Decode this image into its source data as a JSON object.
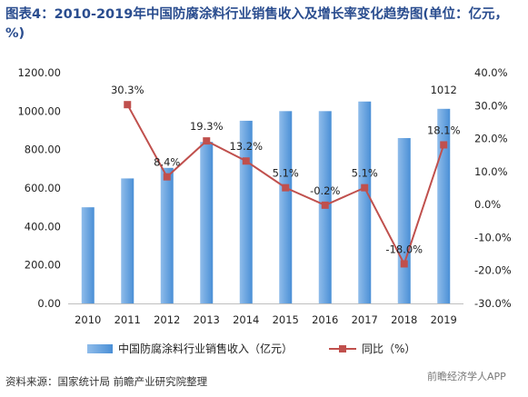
{
  "title": "图表4：2010-2019年中国防腐涂料行业销售收入及增长率变化趋势图(单位：亿元，%)",
  "source": "资料来源：国家统计局 前瞻产业研究院整理",
  "watermark": "前瞻经济学人APP",
  "chart_data": {
    "type": "bar+line",
    "categories": [
      "2010",
      "2011",
      "2012",
      "2013",
      "2014",
      "2015",
      "2016",
      "2017",
      "2018",
      "2019"
    ],
    "series": [
      {
        "name": "中国防腐涂料行业销售收入（亿元）",
        "type": "bar",
        "axis": "left",
        "values": [
          500,
          650,
          705,
          840,
          950,
          1000,
          1000,
          1050,
          860,
          1012
        ],
        "data_labels": [
          "",
          "",
          "",
          "",
          "",
          "",
          "",
          "",
          "",
          "1012"
        ],
        "color": "#5b9bd5"
      },
      {
        "name": "同比（%）",
        "type": "line",
        "axis": "right",
        "values": [
          null,
          30.3,
          8.4,
          19.3,
          13.2,
          5.1,
          -0.2,
          5.1,
          -18.0,
          18.1
        ],
        "data_labels": [
          "",
          "30.3%",
          "8.4%",
          "19.3%",
          "13.2%",
          "5.1%",
          "-0.2%",
          "5.1%",
          "-18.0%",
          "18.1%"
        ],
        "color": "#c0504d"
      }
    ],
    "y_left": {
      "min": 0,
      "max": 1200,
      "ticks": [
        "0.00",
        "200.00",
        "400.00",
        "600.00",
        "800.00",
        "1000.00",
        "1200.00"
      ]
    },
    "y_right": {
      "min": -30,
      "max": 40,
      "ticks": [
        "-30.0%",
        "-20.0%",
        "-10.0%",
        "0.0%",
        "10.0%",
        "20.0%",
        "30.0%",
        "40.0%"
      ]
    },
    "grid": false,
    "legend_position": "bottom"
  }
}
